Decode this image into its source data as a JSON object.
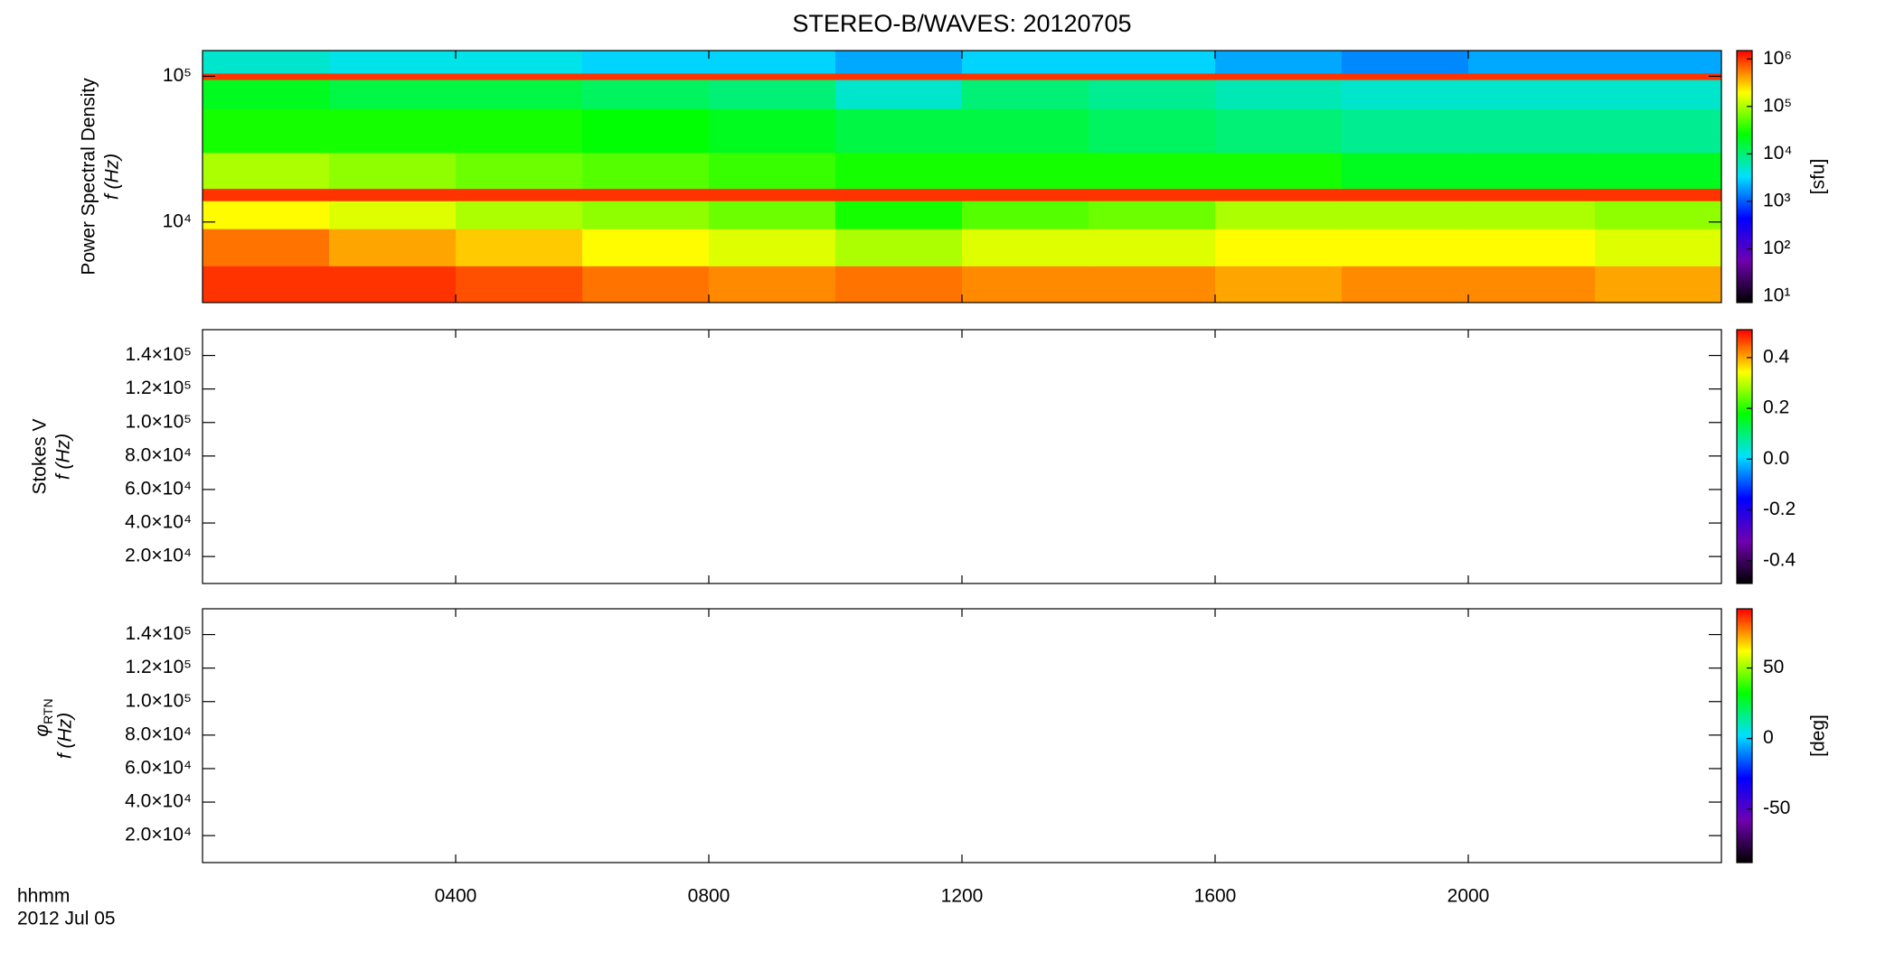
{
  "chart_data": [
    {
      "type": "heatmap",
      "title": "STEREO-B/WAVES: 20120705",
      "ylabel_title": "Power Spectral Density",
      "ylabel": "f (Hz)",
      "xlim": [
        0,
        24
      ],
      "xticks": [
        {
          "value": 4,
          "label": "0400"
        },
        {
          "value": 8,
          "label": "0800"
        },
        {
          "value": 12,
          "label": "1200"
        },
        {
          "value": 16,
          "label": "1600"
        },
        {
          "value": 20,
          "label": "2000"
        }
      ],
      "ylog": true,
      "ylim": [
        2800,
        150000
      ],
      "yticks": [
        {
          "value": 10000,
          "label": "10⁴"
        },
        {
          "value": 100000,
          "label": "10⁵"
        }
      ],
      "x_edges": [
        0,
        2,
        4,
        6,
        8,
        10,
        12,
        14,
        16,
        18,
        20,
        22,
        24
      ],
      "y_edges": [
        2800,
        5000,
        9000,
        14000,
        17000,
        30000,
        60000,
        95000,
        105000,
        150000
      ],
      "values": [
        [
          1000000,
          1000000,
          800000,
          600000,
          500000,
          600000,
          500000,
          500000,
          400000,
          500000,
          500000,
          400000
        ],
        [
          600000,
          400000,
          300000,
          200000,
          150000,
          100000,
          150000,
          150000,
          200000,
          200000,
          200000,
          150000
        ],
        [
          200000,
          150000,
          100000,
          80000,
          60000,
          30000,
          50000,
          60000,
          100000,
          100000,
          100000,
          80000
        ],
        [
          1000000,
          1000000,
          1000000,
          1000000,
          1000000,
          1000000,
          1000000,
          1000000,
          1000000,
          1000000,
          1000000,
          1000000
        ],
        [
          100000,
          80000,
          60000,
          50000,
          40000,
          30000,
          30000,
          30000,
          30000,
          20000,
          20000,
          20000
        ],
        [
          30000,
          30000,
          30000,
          25000,
          20000,
          15000,
          15000,
          12000,
          10000,
          8000,
          8000,
          8000
        ],
        [
          20000,
          15000,
          15000,
          12000,
          10000,
          5000,
          10000,
          8000,
          6000,
          5000,
          5000,
          5000
        ],
        [
          1000000,
          1000000,
          1000000,
          1000000,
          1000000,
          1000000,
          1000000,
          1000000,
          1000000,
          1000000,
          1000000,
          1000000
        ],
        [
          5000,
          4000,
          4000,
          3000,
          3000,
          2000,
          3000,
          3000,
          2000,
          1500,
          2000,
          2000
        ]
      ],
      "colorbar": {
        "log": true,
        "lim": [
          7.4,
          1500000
        ],
        "unit": "[sfu]",
        "ticks": [
          {
            "value": 10,
            "label": "10¹"
          },
          {
            "value": 100,
            "label": "10²"
          },
          {
            "value": 1000,
            "label": "10³"
          },
          {
            "value": 10000,
            "label": "10⁴"
          },
          {
            "value": 100000,
            "label": "10⁵"
          },
          {
            "value": 1000000,
            "label": "10⁶"
          }
        ]
      },
      "colormap": [
        "#000000",
        "#7000b0",
        "#0000ff",
        "#00e0ff",
        "#00ff00",
        "#ffff00",
        "#ff0000"
      ]
    },
    {
      "type": "heatmap",
      "ylabel_title": "Stokes V",
      "ylabel": "f (Hz)",
      "xlim": [
        0,
        24
      ],
      "xticks": [
        {
          "value": 4,
          "label": "0400"
        },
        {
          "value": 8,
          "label": "0800"
        },
        {
          "value": 12,
          "label": "1200"
        },
        {
          "value": 16,
          "label": "1600"
        },
        {
          "value": 20,
          "label": "2000"
        }
      ],
      "ylog": false,
      "ylim": [
        3900,
        155400
      ],
      "yticks": [
        {
          "value": 20000,
          "label": "2.0×10⁴"
        },
        {
          "value": 40000,
          "label": "4.0×10⁴"
        },
        {
          "value": 60000,
          "label": "6.0×10⁴"
        },
        {
          "value": 80000,
          "label": "8.0×10⁴"
        },
        {
          "value": 100000,
          "label": "1.0×10⁵"
        },
        {
          "value": 120000,
          "label": "1.2×10⁵"
        },
        {
          "value": 140000,
          "label": "1.4×10⁵"
        }
      ],
      "colorbar": {
        "log": false,
        "lim": [
          -0.49,
          0.51
        ],
        "ticks": [
          -0.4,
          -0.2,
          {
            "value": 0,
            "label": "0.0"
          },
          0.2,
          0.4
        ]
      },
      "colormap": [
        "#000000",
        "#7000b0",
        "#0000ff",
        "#00e0ff",
        "#00ff00",
        "#ffff00",
        "#ff0000"
      ]
    },
    {
      "type": "heatmap",
      "ylabel_symbol": {
        "text": "φ",
        "subscript": "RTN"
      },
      "ylabel": "f (Hz)",
      "xlim": [
        0,
        24
      ],
      "xticks": [
        {
          "value": 4,
          "label": "0400"
        },
        {
          "value": 8,
          "label": "0800"
        },
        {
          "value": 12,
          "label": "1200"
        },
        {
          "value": 16,
          "label": "1600"
        },
        {
          "value": 20,
          "label": "2000"
        }
      ],
      "ylog": false,
      "ylim": [
        3900,
        155400
      ],
      "yticks": [
        {
          "value": 20000,
          "label": "2.0×10⁴"
        },
        {
          "value": 40000,
          "label": "4.0×10⁴"
        },
        {
          "value": 60000,
          "label": "6.0×10⁴"
        },
        {
          "value": 80000,
          "label": "8.0×10⁴"
        },
        {
          "value": 100000,
          "label": "1.0×10⁵"
        },
        {
          "value": 120000,
          "label": "1.2×10⁵"
        },
        {
          "value": 140000,
          "label": "1.4×10⁵"
        }
      ],
      "colorbar": {
        "log": false,
        "lim": [
          -88,
          92
        ],
        "unit": "[deg]",
        "ticks": [
          -50,
          0,
          50
        ]
      },
      "colormap": [
        "#000000",
        "#7000b0",
        "#0000ff",
        "#00e0ff",
        "#00ff00",
        "#ffff00",
        "#ff0000"
      ]
    }
  ],
  "time_axis": {
    "label": "hhmm",
    "date": "2012 Jul 05"
  }
}
